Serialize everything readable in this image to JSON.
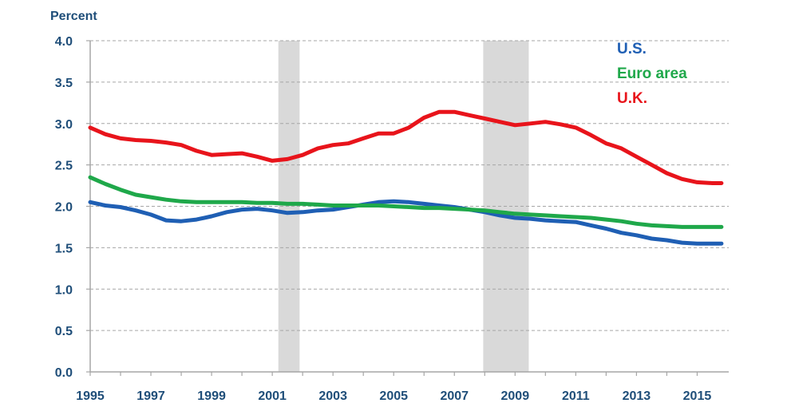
{
  "chart_data": {
    "type": "line",
    "unit_label": "Percent",
    "xlim": [
      1995,
      2015.83
    ],
    "ylim": [
      0,
      4
    ],
    "y_ticks": [
      "0.0",
      "0.5",
      "1.0",
      "1.5",
      "2.0",
      "2.5",
      "3.0",
      "3.5",
      "4.0"
    ],
    "x_ticks": [
      "1995",
      "1997",
      "1999",
      "2001",
      "2003",
      "2005",
      "2007",
      "2009",
      "2011",
      "2013",
      "2015"
    ],
    "grid": true,
    "legend_position": "top-right",
    "recession_periods": [
      [
        2001.2,
        2001.9
      ],
      [
        2007.95,
        2009.45
      ]
    ],
    "recession_color": "#d9d9d9",
    "grid_color": "#a6a6a6",
    "axis_color": "#a6a6a6",
    "series": [
      {
        "name": "U.S.",
        "color": "#1f5fb4",
        "x": [
          1995,
          1995.5,
          1996,
          1996.5,
          1997,
          1997.5,
          1998,
          1998.5,
          1999,
          1999.5,
          2000,
          2000.5,
          2001,
          2001.5,
          2002,
          2002.5,
          2003,
          2003.5,
          2004,
          2004.5,
          2005,
          2005.5,
          2006,
          2006.5,
          2007,
          2007.5,
          2008,
          2008.5,
          2009,
          2009.5,
          2010,
          2010.5,
          2011,
          2011.5,
          2012,
          2012.5,
          2013,
          2013.5,
          2014,
          2014.5,
          2015,
          2015.5,
          2015.8
        ],
        "y": [
          2.05,
          2.01,
          1.99,
          1.95,
          1.9,
          1.83,
          1.82,
          1.84,
          1.88,
          1.93,
          1.96,
          1.97,
          1.95,
          1.92,
          1.93,
          1.95,
          1.96,
          1.99,
          2.02,
          2.05,
          2.06,
          2.05,
          2.03,
          2.01,
          1.99,
          1.96,
          1.93,
          1.89,
          1.86,
          1.85,
          1.83,
          1.82,
          1.81,
          1.77,
          1.73,
          1.68,
          1.65,
          1.61,
          1.59,
          1.56,
          1.55,
          1.55,
          1.55
        ]
      },
      {
        "name": "Euro area",
        "color": "#1fa84a",
        "x": [
          1995,
          1995.5,
          1996,
          1996.5,
          1997,
          1997.5,
          1998,
          1998.5,
          1999,
          1999.5,
          2000,
          2000.5,
          2001,
          2001.5,
          2002,
          2002.5,
          2003,
          2003.5,
          2004,
          2004.5,
          2005,
          2005.5,
          2006,
          2006.5,
          2007,
          2007.5,
          2008,
          2008.5,
          2009,
          2009.5,
          2010,
          2010.5,
          2011,
          2011.5,
          2012,
          2012.5,
          2013,
          2013.5,
          2014,
          2014.5,
          2015,
          2015.5,
          2015.8
        ],
        "y": [
          2.35,
          2.27,
          2.2,
          2.14,
          2.11,
          2.08,
          2.06,
          2.05,
          2.05,
          2.05,
          2.05,
          2.04,
          2.04,
          2.03,
          2.03,
          2.02,
          2.01,
          2.01,
          2.01,
          2.01,
          2.0,
          1.99,
          1.98,
          1.98,
          1.97,
          1.96,
          1.95,
          1.93,
          1.91,
          1.9,
          1.89,
          1.88,
          1.87,
          1.86,
          1.84,
          1.82,
          1.79,
          1.77,
          1.76,
          1.75,
          1.75,
          1.75,
          1.75
        ]
      },
      {
        "name": "U.K.",
        "color": "#e8141b",
        "x": [
          1995,
          1995.5,
          1996,
          1996.5,
          1997,
          1997.5,
          1998,
          1998.5,
          1999,
          1999.5,
          2000,
          2000.5,
          2001,
          2001.5,
          2002,
          2002.5,
          2003,
          2003.5,
          2004,
          2004.5,
          2005,
          2005.5,
          2006,
          2006.5,
          2007,
          2007.5,
          2008,
          2008.5,
          2009,
          2009.5,
          2010,
          2010.5,
          2011,
          2011.5,
          2012,
          2012.5,
          2013,
          2013.5,
          2014,
          2014.5,
          2015,
          2015.5,
          2015.8
        ],
        "y": [
          2.95,
          2.87,
          2.82,
          2.8,
          2.79,
          2.77,
          2.74,
          2.67,
          2.62,
          2.63,
          2.64,
          2.6,
          2.55,
          2.57,
          2.62,
          2.7,
          2.74,
          2.76,
          2.82,
          2.88,
          2.88,
          2.95,
          3.07,
          3.14,
          3.14,
          3.1,
          3.06,
          3.02,
          2.98,
          3.0,
          3.02,
          2.99,
          2.95,
          2.86,
          2.76,
          2.7,
          2.6,
          2.5,
          2.4,
          2.33,
          2.29,
          2.28,
          2.28
        ]
      }
    ]
  }
}
